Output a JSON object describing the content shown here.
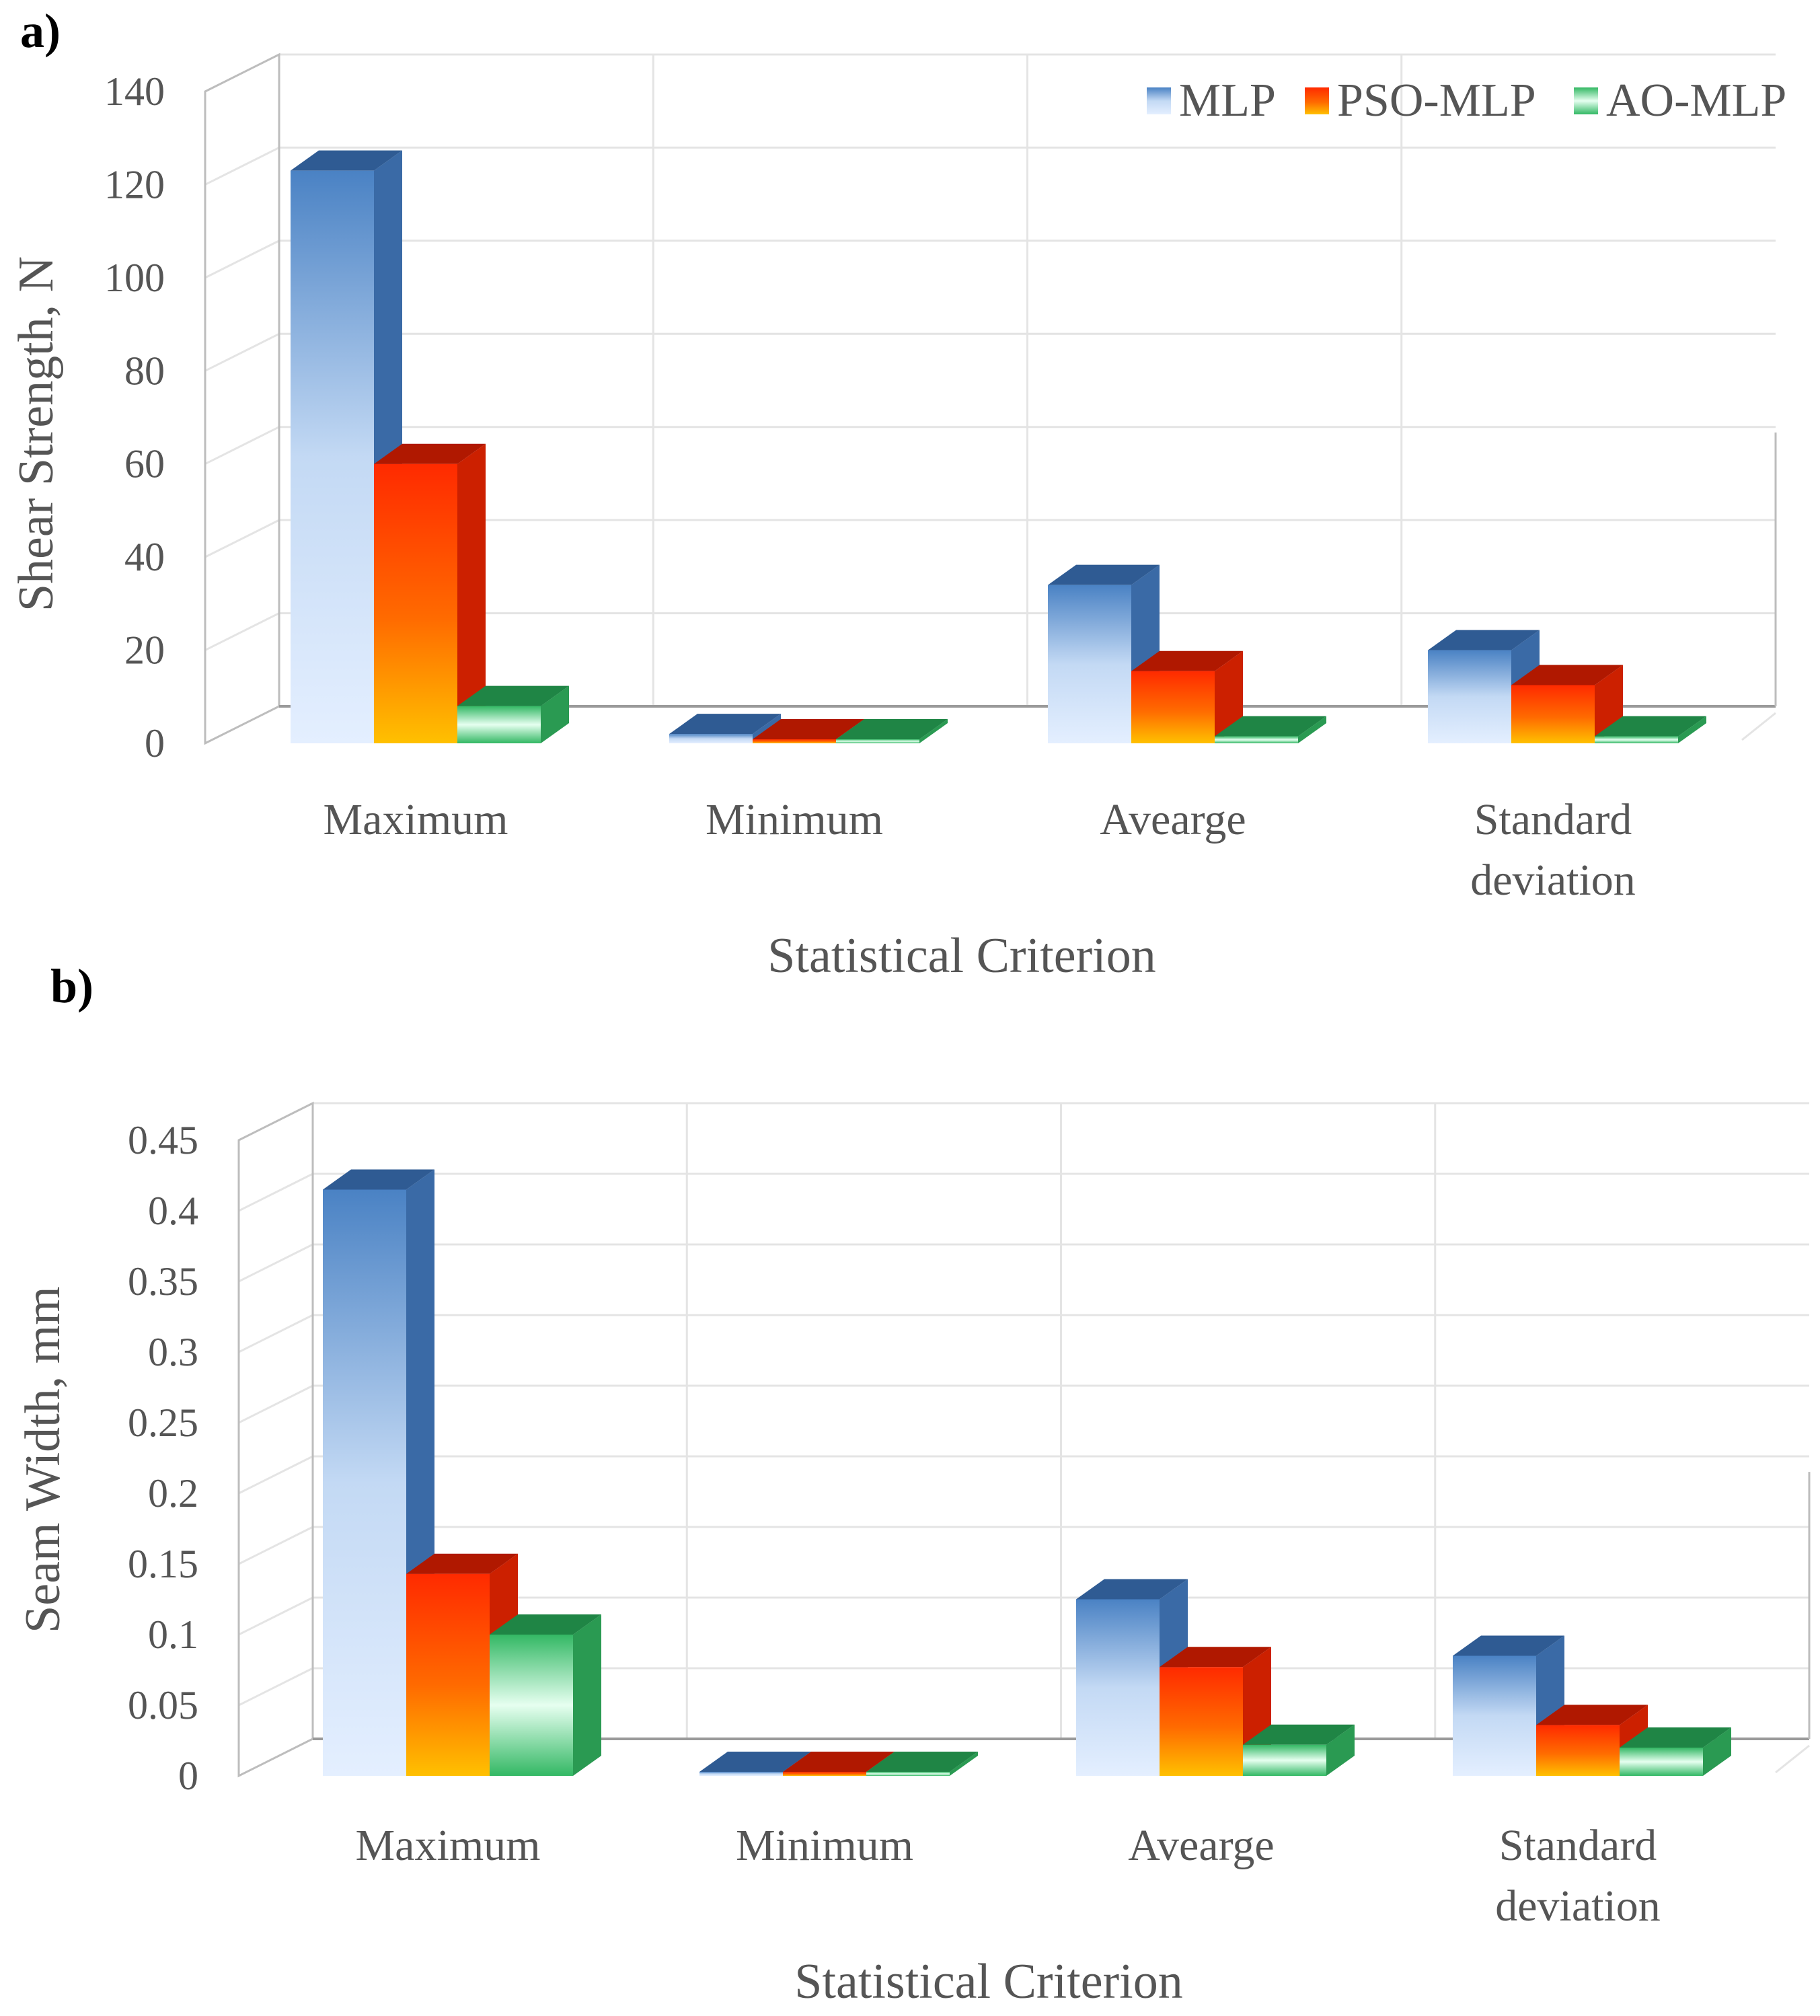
{
  "chart_data": [
    {
      "type": "bar",
      "panel_label": "a)",
      "categories": [
        "Maximum",
        "Minimum",
        "Avearge",
        "Standard deviation"
      ],
      "series": [
        {
          "name": "MLP",
          "values": [
            123,
            2,
            34,
            20
          ]
        },
        {
          "name": "PSO-MLP",
          "values": [
            60,
            0.5,
            15.5,
            12.5
          ]
        },
        {
          "name": "AO-MLP",
          "values": [
            8,
            0.3,
            1.5,
            1.5
          ]
        }
      ],
      "xlabel": "Statistical Criterion",
      "ylabel": "Shear Strength, N",
      "ylim": [
        0,
        140
      ],
      "yticks": [
        "0",
        "20",
        "40",
        "60",
        "80",
        "100",
        "120",
        "140"
      ],
      "legend": "top-right",
      "grid": true
    },
    {
      "type": "bar",
      "panel_label": "b)",
      "categories": [
        "Maximum",
        "Minimum",
        "Avearge",
        "Standard deviation"
      ],
      "series": [
        {
          "name": "MLP",
          "values": [
            0.415,
            0.002,
            0.125,
            0.085
          ]
        },
        {
          "name": "PSO-MLP",
          "values": [
            0.143,
            0.001,
            0.077,
            0.036
          ]
        },
        {
          "name": "AO-MLP",
          "values": [
            0.1,
            0.001,
            0.022,
            0.02
          ]
        }
      ],
      "xlabel": "Statistical Criterion",
      "ylabel": "Seam Width, mm",
      "ylim": [
        0,
        0.45
      ],
      "yticks": [
        "0",
        "0.05",
        "0.1",
        "0.15",
        "0.2",
        "0.25",
        "0.3",
        "0.35",
        "0.4",
        "0.45"
      ],
      "legend": "none",
      "grid": true
    }
  ],
  "colors": {
    "MLP": [
      "#e4efff",
      "#4a82c4",
      "#3a6aa6",
      "#2f5b93"
    ],
    "PSO-MLP": [
      "#ffc000",
      "#ff3c00",
      "#cc2000",
      "#b01800"
    ],
    "AO-MLP": [
      "#e6fff0",
      "#33b864",
      "#2a9a52",
      "#1f8545"
    ]
  }
}
